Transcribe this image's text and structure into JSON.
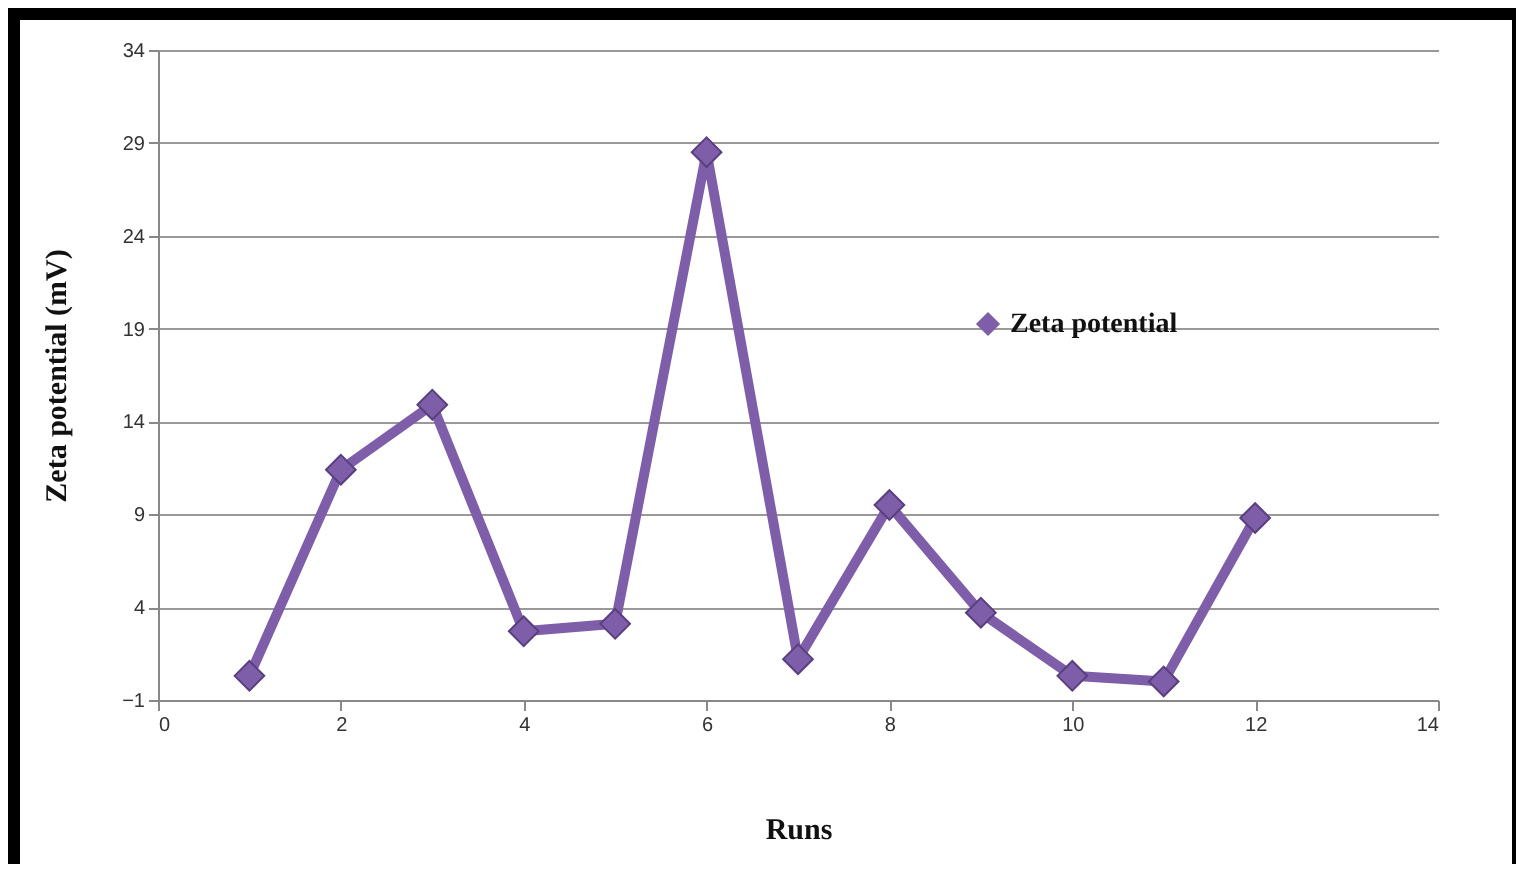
{
  "chart_data": {
    "type": "line",
    "xlabel": "Runs",
    "ylabel": "Zeta potential (mV)",
    "x": [
      1,
      2,
      3,
      4,
      5,
      6,
      7,
      8,
      9,
      10,
      11,
      12
    ],
    "series": [
      {
        "name": "Zeta potential",
        "color": "#7e5ea8",
        "values": [
          0.3,
          11.4,
          14.9,
          2.7,
          3.1,
          28.5,
          1.2,
          9.5,
          3.7,
          0.3,
          0.0,
          8.8
        ]
      }
    ],
    "xlim": [
      0,
      14
    ],
    "xticks": [
      0,
      2,
      4,
      6,
      8,
      10,
      12,
      14
    ],
    "ylim": [
      -1,
      34
    ],
    "yticks": [
      -1,
      4,
      9,
      14,
      19,
      24,
      29,
      34
    ],
    "grid": "y",
    "legend": "top right",
    "marker": "diamond",
    "line_style": "solid"
  }
}
